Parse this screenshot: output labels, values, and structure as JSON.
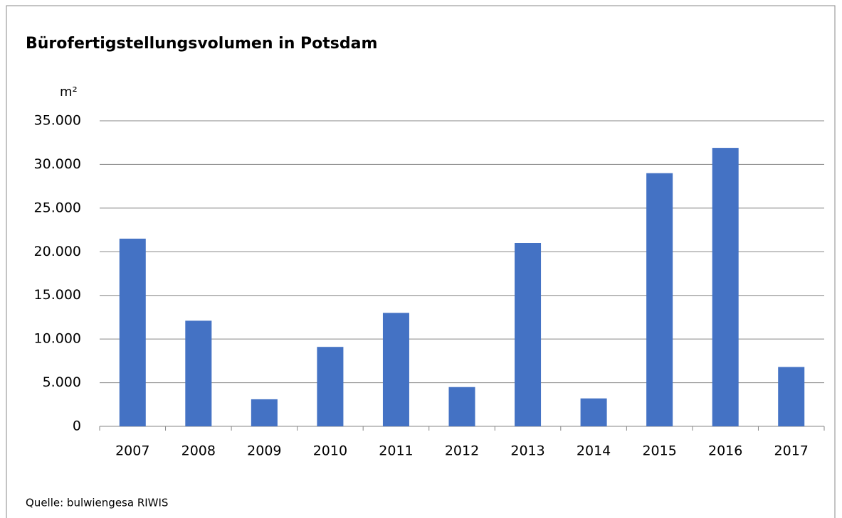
{
  "chart_data": {
    "type": "bar",
    "title": "Bürofertigstellungsvolumen in Potsdam",
    "y_label": "m²",
    "source": "Quelle: bulwiengesa RIWIS",
    "categories": [
      "2007",
      "2008",
      "2009",
      "2010",
      "2011",
      "2012",
      "2013",
      "2014",
      "2015",
      "2016",
      "2017"
    ],
    "values": [
      21500,
      12100,
      3100,
      9100,
      13000,
      4500,
      21000,
      3200,
      29000,
      31900,
      6800
    ],
    "color": "#4472c4",
    "ylim": [
      0,
      35000
    ],
    "yticks": [
      0,
      {
        "value": 5000,
        "label": "5.000"
      },
      {
        "value": 10000,
        "label": "10.000"
      },
      {
        "value": 15000,
        "label": "15.000"
      },
      {
        "value": 20000,
        "label": "20.000"
      },
      {
        "value": 25000,
        "label": "25.000"
      },
      {
        "value": 30000,
        "label": "30.000"
      },
      {
        "value": 35000,
        "label": "35.000"
      }
    ],
    "grid": true
  }
}
